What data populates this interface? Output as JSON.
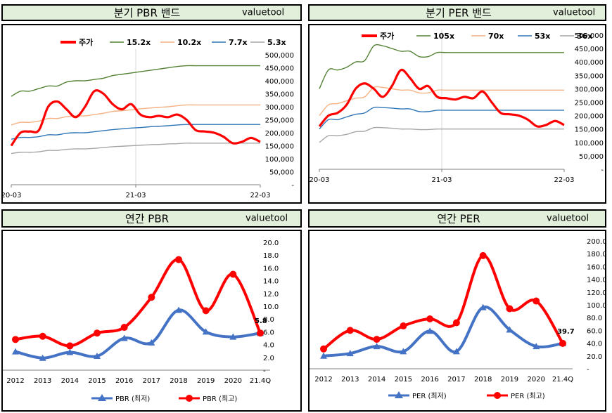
{
  "brand": "valuetool",
  "headers": {
    "quarterly_pbr": "분기 PBR 밴드",
    "quarterly_per": "분기 PER 밴드",
    "annual_pbr": "연간 PBR",
    "annual_per": "연간 PER"
  },
  "colors": {
    "price": "#ff0000",
    "band1": "#548235",
    "band2": "#f4b183",
    "band3": "#2e75b6",
    "band4": "#a6a6a6",
    "low": "#4472c4",
    "high": "#ff0000",
    "header_bg": "#e2efda"
  },
  "chart_data": [
    {
      "id": "pbr_band",
      "type": "line",
      "x_ticks": [
        "20-03",
        "21-03",
        "22-03"
      ],
      "y_ticks": [
        "500,000",
        "450,000",
        "400,000",
        "350,000",
        "300,000",
        "250,000",
        "200,000",
        "150,000",
        "100,000",
        "50,000",
        "-"
      ],
      "ylim": [
        0,
        500000
      ],
      "series": [
        {
          "name": "주가",
          "role": "price",
          "values": [
            150000,
            200000,
            205000,
            210000,
            300000,
            320000,
            290000,
            260000,
            300000,
            360000,
            350000,
            310000,
            290000,
            310000,
            270000,
            260000,
            265000,
            260000,
            270000,
            250000,
            210000,
            205000,
            200000,
            185000,
            160000,
            165000,
            180000,
            165000
          ]
        },
        {
          "name": "15.2x",
          "role": "band1",
          "values": [
            340000,
            360000,
            360000,
            370000,
            380000,
            380000,
            395000,
            400000,
            400000,
            405000,
            410000,
            420000,
            425000,
            430000,
            435000,
            440000,
            445000,
            450000,
            455000,
            458000,
            458000,
            458000,
            458000,
            458000,
            458000,
            458000,
            458000,
            458000
          ]
        },
        {
          "name": "10.2x",
          "role": "band2",
          "values": [
            230000,
            240000,
            240000,
            245000,
            255000,
            255000,
            262000,
            265000,
            265000,
            270000,
            275000,
            282000,
            285000,
            288000,
            292000,
            295000,
            298000,
            300000,
            304000,
            307000,
            307000,
            307000,
            307000,
            307000,
            307000,
            307000,
            307000,
            307000
          ]
        },
        {
          "name": "7.7x",
          "role": "band3",
          "values": [
            175000,
            182000,
            182000,
            185000,
            192000,
            192000,
            198000,
            200000,
            200000,
            204000,
            208000,
            212000,
            215000,
            218000,
            220000,
            223000,
            225000,
            227000,
            230000,
            232000,
            232000,
            232000,
            232000,
            232000,
            232000,
            232000,
            232000,
            232000
          ]
        },
        {
          "name": "5.3x",
          "role": "band4",
          "values": [
            120000,
            125000,
            125000,
            127000,
            132000,
            132000,
            136000,
            138000,
            138000,
            140000,
            143000,
            146000,
            148000,
            150000,
            152000,
            154000,
            155000,
            157000,
            158000,
            160000,
            160000,
            160000,
            160000,
            160000,
            160000,
            160000,
            160000,
            160000
          ]
        }
      ]
    },
    {
      "id": "per_band",
      "type": "line",
      "x_ticks": [
        "20-03",
        "21-03",
        "22-03"
      ],
      "y_ticks": [
        "500,000",
        "450,000",
        "400,000",
        "350,000",
        "300,000",
        "250,000",
        "200,000",
        "150,000",
        "100,000",
        "50,000",
        "-"
      ],
      "ylim": [
        0,
        500000
      ],
      "series": [
        {
          "name": "주가",
          "role": "price",
          "values": [
            160000,
            200000,
            210000,
            240000,
            300000,
            320000,
            300000,
            270000,
            310000,
            370000,
            340000,
            300000,
            310000,
            270000,
            265000,
            260000,
            270000,
            265000,
            290000,
            250000,
            210000,
            205000,
            200000,
            185000,
            160000,
            165000,
            180000,
            165000
          ]
        },
        {
          "name": "105x",
          "role": "band1",
          "values": [
            300000,
            370000,
            370000,
            380000,
            400000,
            405000,
            460000,
            460000,
            450000,
            440000,
            440000,
            420000,
            420000,
            435000,
            435000,
            435000,
            435000,
            435000,
            435000,
            435000,
            435000,
            435000,
            435000,
            435000,
            435000,
            435000,
            435000,
            435000
          ]
        },
        {
          "name": "70x",
          "role": "band2",
          "values": [
            200000,
            240000,
            245000,
            255000,
            265000,
            270000,
            305000,
            305000,
            300000,
            295000,
            295000,
            285000,
            285000,
            295000,
            295000,
            295000,
            295000,
            295000,
            295000,
            295000,
            295000,
            295000,
            295000,
            295000,
            295000,
            295000,
            295000,
            295000
          ]
        },
        {
          "name": "53x",
          "role": "band3",
          "values": [
            150000,
            185000,
            185000,
            195000,
            205000,
            210000,
            230000,
            230000,
            228000,
            225000,
            225000,
            215000,
            215000,
            220000,
            220000,
            220000,
            220000,
            220000,
            220000,
            220000,
            220000,
            220000,
            220000,
            220000,
            220000,
            220000,
            220000,
            220000
          ]
        },
        {
          "name": "36x",
          "role": "band4",
          "values": [
            100000,
            125000,
            125000,
            130000,
            140000,
            142000,
            155000,
            155000,
            153000,
            150000,
            150000,
            148000,
            148000,
            150000,
            150000,
            150000,
            150000,
            150000,
            150000,
            150000,
            150000,
            150000,
            150000,
            150000,
            150000,
            150000,
            150000,
            150000
          ]
        }
      ]
    },
    {
      "id": "annual_pbr",
      "type": "line",
      "categories": [
        "2012",
        "2013",
        "2014",
        "2015",
        "2016",
        "2017",
        "2018",
        "2019",
        "2020",
        "21.4Q"
      ],
      "y_ticks": [
        "20.0",
        "18.0",
        "16.0",
        "14.0",
        "12.0",
        "10.0",
        "8.0",
        "6.0",
        "4.0",
        "2.0",
        "-"
      ],
      "ylim": [
        0,
        20
      ],
      "series": [
        {
          "name": "PBR (최저)",
          "role": "low",
          "values": [
            2.9,
            1.9,
            2.8,
            2.2,
            5.0,
            4.3,
            9.4,
            6.0,
            5.2,
            5.8
          ]
        },
        {
          "name": "PBR (최고)",
          "role": "high",
          "values": [
            4.8,
            5.3,
            3.8,
            5.8,
            6.7,
            11.4,
            17.3,
            9.3,
            15.0,
            5.8
          ]
        }
      ],
      "annotation": "5.8"
    },
    {
      "id": "annual_per",
      "type": "line",
      "categories": [
        "2012",
        "2013",
        "2014",
        "2015",
        "2016",
        "2017",
        "2018",
        "2019",
        "2020",
        "21.4Q"
      ],
      "y_ticks": [
        "200.0",
        "180.0",
        "160.0",
        "140.0",
        "120.0",
        "100.0",
        "80.0",
        "60.0",
        "40.0",
        "20.0",
        "-"
      ],
      "ylim": [
        0,
        200
      ],
      "series": [
        {
          "name": "PER (최저)",
          "role": "low",
          "values": [
            20,
            24,
            35,
            27,
            59,
            27,
            96,
            61,
            35,
            39.7
          ]
        },
        {
          "name": "PER (최고)",
          "role": "high",
          "values": [
            31,
            60,
            46,
            67,
            78,
            72,
            177,
            94,
            106,
            39.7
          ]
        }
      ],
      "annotation": "39.7"
    }
  ]
}
